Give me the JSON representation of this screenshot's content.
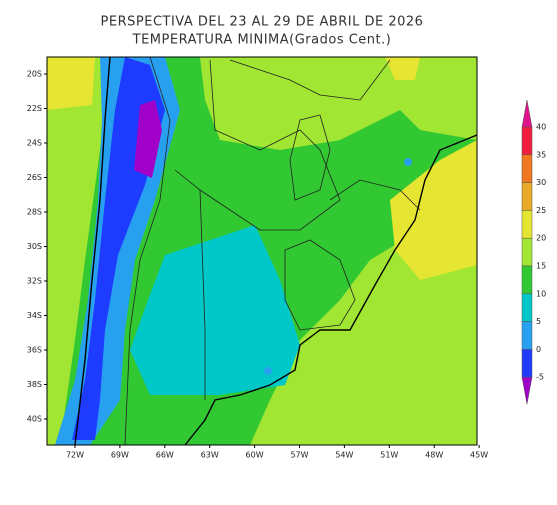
{
  "title": [
    "PERSPECTIVA DEL 23 AL 29 DE ABRIL DE 2026",
    "TEMPERATURA MINIMA(Grados Cent.)"
  ],
  "lat_labels": [
    "20S",
    "22S",
    "24S",
    "26S",
    "28S",
    "30S",
    "32S",
    "34S",
    "36S",
    "38S",
    "40S"
  ],
  "lon_labels": [
    "72W",
    "69W",
    "66W",
    "63W",
    "60W",
    "57W",
    "54W",
    "51W",
    "48W",
    "45W"
  ],
  "colorbar": {
    "ticks": [
      40,
      35,
      30,
      25,
      20,
      15,
      10,
      5,
      0,
      -5
    ],
    "colors": [
      "#e0128c",
      "#f01e3c",
      "#f07820",
      "#e6aa28",
      "#e6e632",
      "#a0e632",
      "#32c832",
      "#00c8c8",
      "#28a0f0",
      "#1e3cff",
      "#a000c8"
    ]
  }
}
